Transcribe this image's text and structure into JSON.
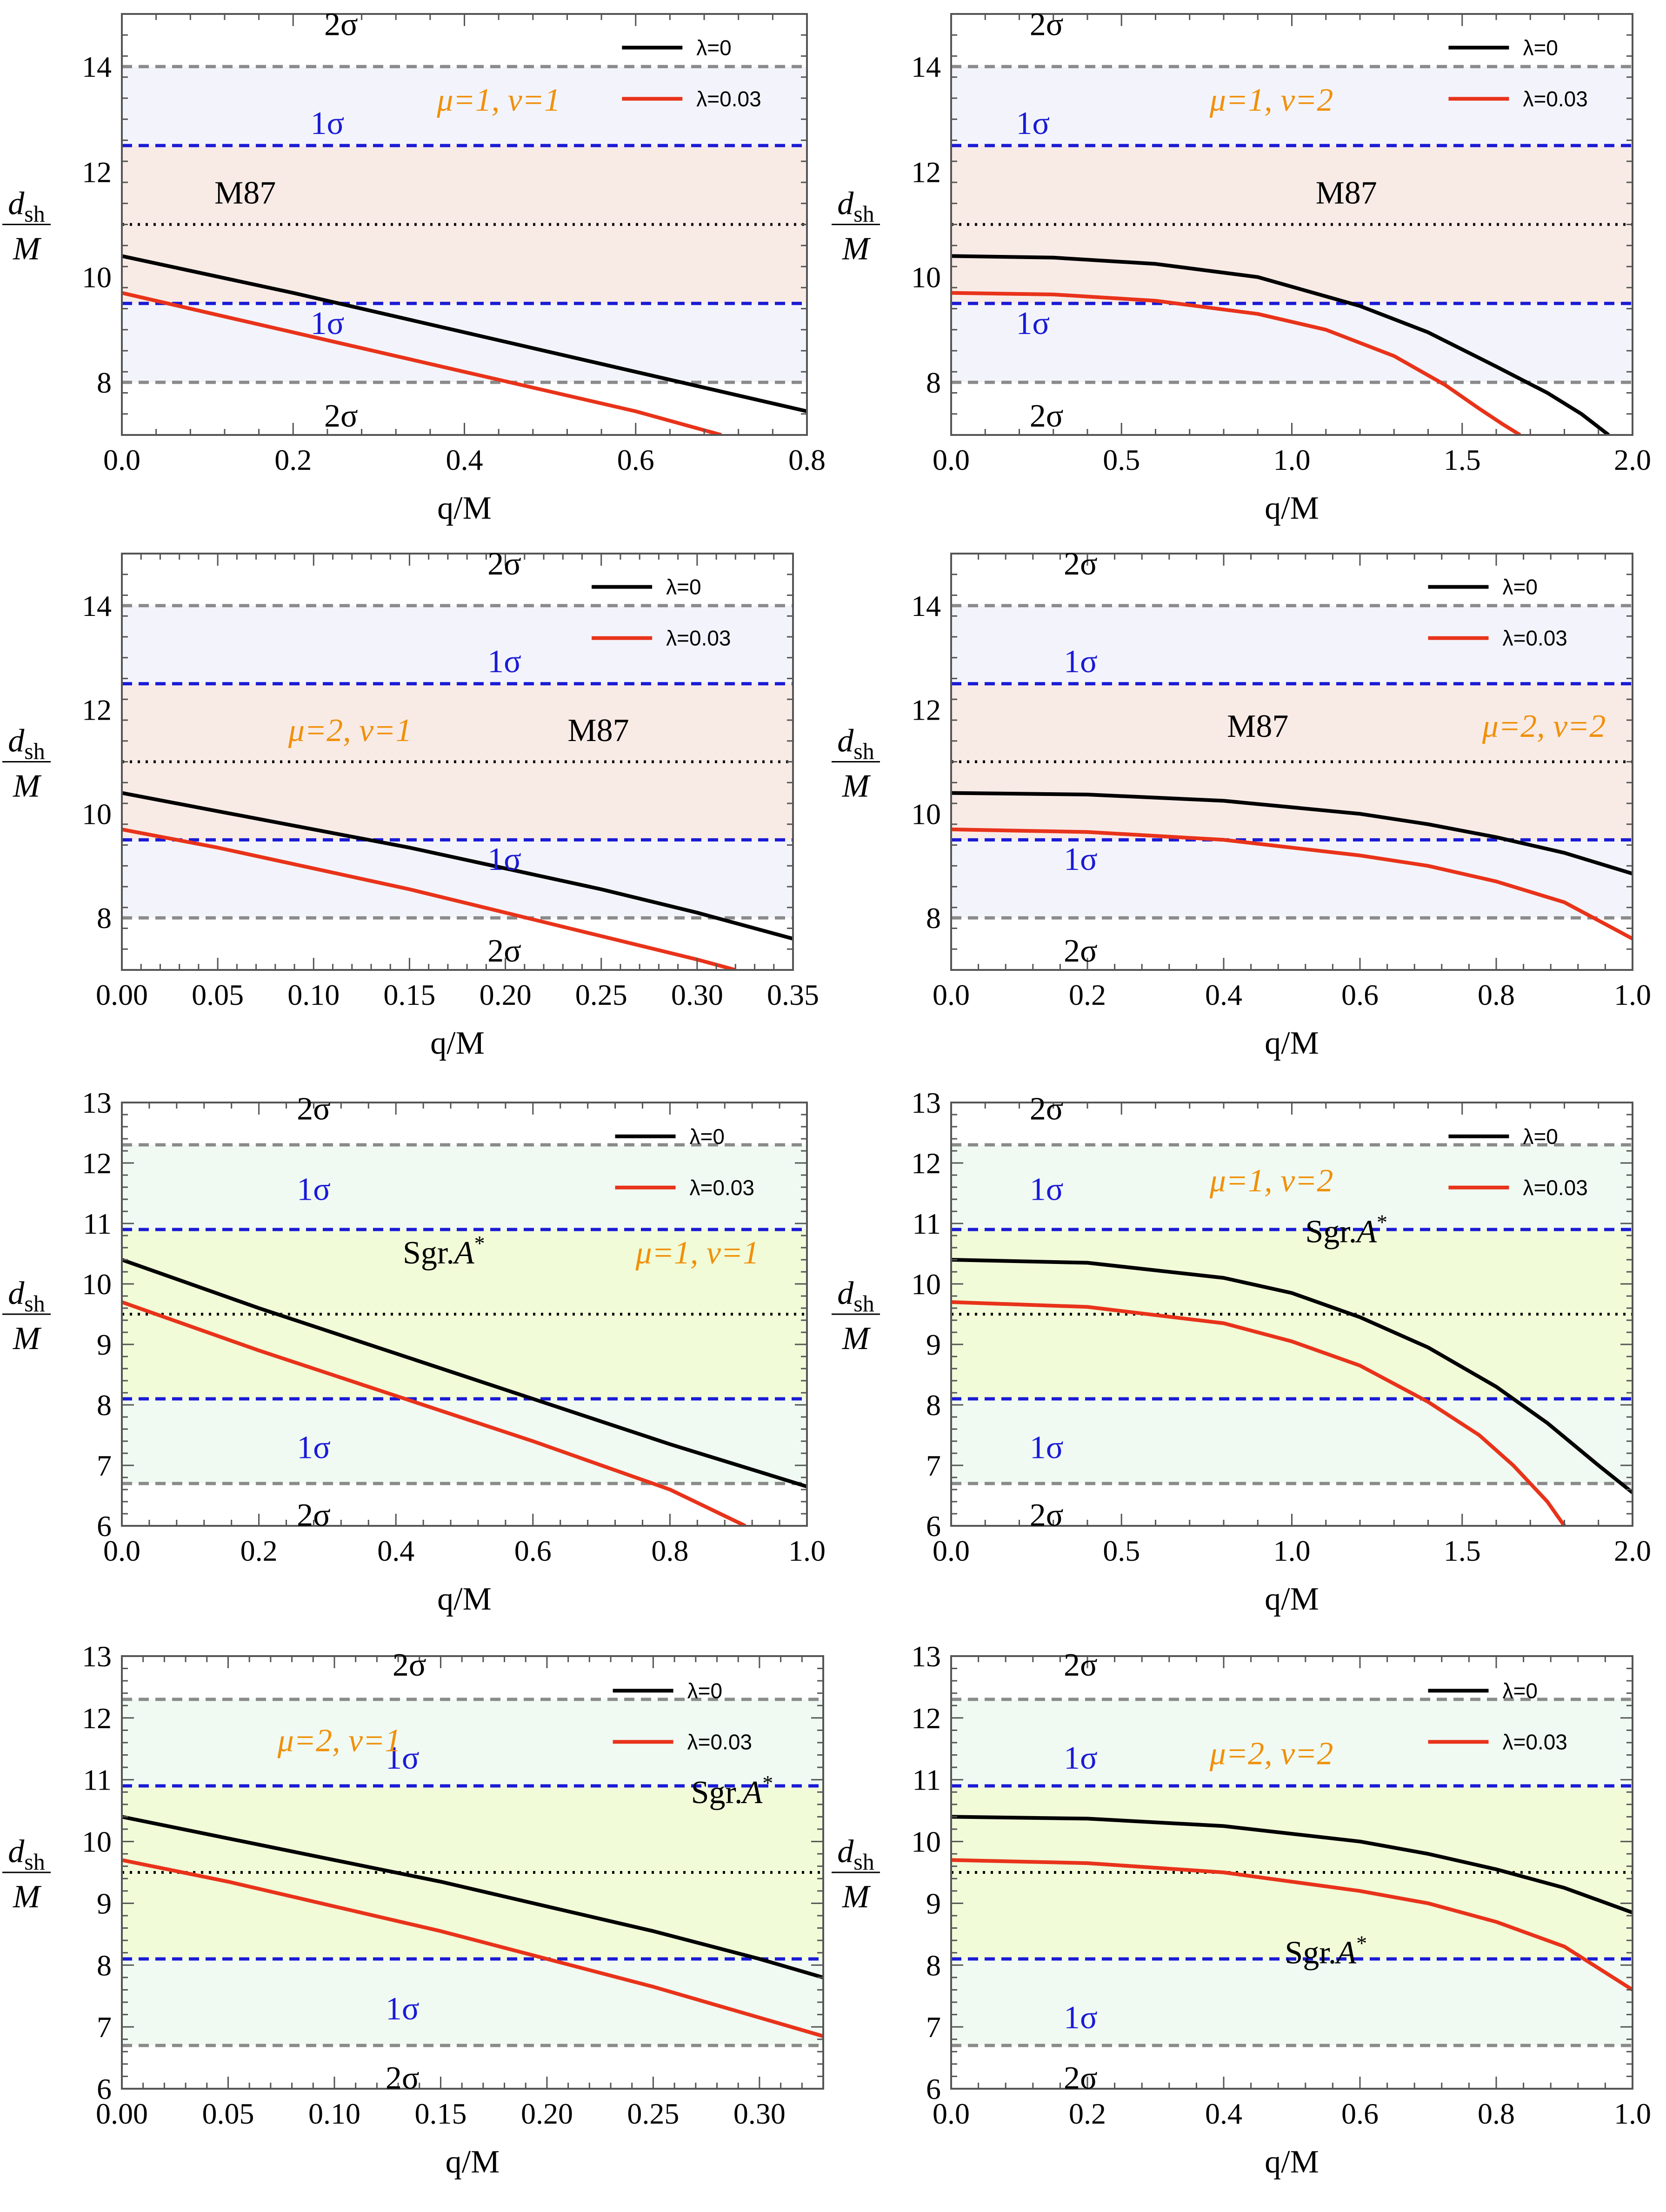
{
  "colors": {
    "lambda0": "#000000",
    "lambda003": "#e8331a",
    "one_sigma_line": "#1a1ad6",
    "two_sigma_line": "#8a8a8a",
    "mean_line": "#000000",
    "m87_band1": "#f8ebe6",
    "m87_band2": "#f3f4fb",
    "sgr_band1": "#f1fbd8",
    "sgr_band2": "#f0faf3",
    "param_label": "#f0900a",
    "one_sigma_label": "#1a1ad6"
  },
  "charts": [
    {
      "type": "line",
      "xlabel": "q/M",
      "ylabel_num": "d",
      "ylabel_sub": "sh",
      "ylabel_den": "M",
      "xlim": [
        0,
        0.8
      ],
      "ylim": [
        7,
        15
      ],
      "xticks": [
        0.0,
        0.2,
        0.4,
        0.6,
        0.8
      ],
      "xtick_labels": [
        "0.0",
        "0.2",
        "0.4",
        "0.6",
        "0.8"
      ],
      "yticks": [
        8,
        10,
        12,
        14
      ],
      "ytick_labels": [
        "8",
        "10",
        "12",
        "14"
      ],
      "band": "m87",
      "ref_lines": {
        "mean": 11,
        "one_sigma": [
          9.5,
          12.5
        ],
        "two_sigma": [
          8,
          14
        ]
      },
      "source_label": "M87",
      "param_label": "μ=1, ν=1",
      "sigma_labels": {
        "two_top": "2σ",
        "one_top": "1σ",
        "one_bottom": "1σ",
        "two_bottom": "2σ"
      },
      "series": [
        {
          "name": "λ=0",
          "x": [
            0,
            0.2,
            0.4,
            0.6,
            0.8
          ],
          "y": [
            10.4,
            9.7,
            8.95,
            8.2,
            7.45
          ]
        },
        {
          "name": "λ=0.03",
          "x": [
            0,
            0.2,
            0.4,
            0.6,
            0.7
          ],
          "y": [
            9.7,
            8.95,
            8.2,
            7.45,
            7.0
          ]
        }
      ]
    },
    {
      "type": "line",
      "xlabel": "q/M",
      "ylabel_num": "d",
      "ylabel_sub": "sh",
      "ylabel_den": "M",
      "xlim": [
        0,
        2.0
      ],
      "ylim": [
        7,
        15
      ],
      "xticks": [
        0.0,
        0.5,
        1.0,
        1.5,
        2.0
      ],
      "xtick_labels": [
        "0.0",
        "0.5",
        "1.0",
        "1.5",
        "2.0"
      ],
      "yticks": [
        8,
        10,
        12,
        14
      ],
      "ytick_labels": [
        "8",
        "10",
        "12",
        "14"
      ],
      "band": "m87",
      "ref_lines": {
        "mean": 11,
        "one_sigma": [
          9.5,
          12.5
        ],
        "two_sigma": [
          8,
          14
        ]
      },
      "source_label": "M87",
      "param_label": "μ=1, ν=2",
      "sigma_labels": {
        "two_top": "2σ",
        "one_top": "1σ",
        "one_bottom": "1σ",
        "two_bottom": "2σ"
      },
      "series": [
        {
          "name": "λ=0",
          "x": [
            0,
            0.3,
            0.6,
            0.9,
            1.2,
            1.4,
            1.6,
            1.75,
            1.85,
            1.93
          ],
          "y": [
            10.4,
            10.37,
            10.25,
            10.0,
            9.45,
            8.95,
            8.3,
            7.8,
            7.4,
            7.0
          ]
        },
        {
          "name": "λ=0.03",
          "x": [
            0,
            0.3,
            0.6,
            0.9,
            1.1,
            1.3,
            1.45,
            1.55,
            1.62,
            1.67
          ],
          "y": [
            9.7,
            9.67,
            9.55,
            9.3,
            9.0,
            8.5,
            7.95,
            7.5,
            7.2,
            7.0
          ]
        }
      ]
    },
    {
      "type": "line",
      "xlabel": "q/M",
      "ylabel_num": "d",
      "ylabel_sub": "sh",
      "ylabel_den": "M",
      "xlim": [
        0,
        0.35
      ],
      "ylim": [
        7,
        15
      ],
      "xticks": [
        0.0,
        0.05,
        0.1,
        0.15,
        0.2,
        0.25,
        0.3,
        0.35
      ],
      "xtick_labels": [
        "0.00",
        "0.05",
        "0.10",
        "0.15",
        "0.20",
        "0.25",
        "0.30",
        "0.35"
      ],
      "yticks": [
        8,
        10,
        12,
        14
      ],
      "ytick_labels": [
        "8",
        "10",
        "12",
        "14"
      ],
      "band": "m87",
      "ref_lines": {
        "mean": 11,
        "one_sigma": [
          9.5,
          12.5
        ],
        "two_sigma": [
          8,
          14
        ]
      },
      "source_label": "M87",
      "param_label": "μ=2, ν=1",
      "sigma_labels": {
        "two_top": "2σ",
        "one_top": "1σ",
        "one_bottom": "1σ",
        "two_bottom": "2σ"
      },
      "series": [
        {
          "name": "λ=0",
          "x": [
            0,
            0.05,
            0.1,
            0.15,
            0.2,
            0.25,
            0.3,
            0.35
          ],
          "y": [
            10.4,
            10.05,
            9.7,
            9.35,
            8.95,
            8.55,
            8.1,
            7.6
          ]
        },
        {
          "name": "λ=0.03",
          "x": [
            0,
            0.05,
            0.1,
            0.15,
            0.2,
            0.25,
            0.3,
            0.32
          ],
          "y": [
            9.7,
            9.35,
            8.95,
            8.55,
            8.1,
            7.65,
            7.2,
            7.0
          ]
        }
      ]
    },
    {
      "type": "line",
      "xlabel": "q/M",
      "ylabel_num": "d",
      "ylabel_sub": "sh",
      "ylabel_den": "M",
      "xlim": [
        0,
        1.0
      ],
      "ylim": [
        7,
        15
      ],
      "xticks": [
        0.0,
        0.2,
        0.4,
        0.6,
        0.8,
        1.0
      ],
      "xtick_labels": [
        "0.0",
        "0.2",
        "0.4",
        "0.6",
        "0.8",
        "1.0"
      ],
      "yticks": [
        8,
        10,
        12,
        14
      ],
      "ytick_labels": [
        "8",
        "10",
        "12",
        "14"
      ],
      "band": "m87",
      "ref_lines": {
        "mean": 11,
        "one_sigma": [
          9.5,
          12.5
        ],
        "two_sigma": [
          8,
          14
        ]
      },
      "source_label": "M87",
      "param_label": "μ=2, ν=2",
      "sigma_labels": {
        "two_top": "2σ",
        "one_top": "1σ",
        "one_bottom": "1σ",
        "two_bottom": "2σ"
      },
      "series": [
        {
          "name": "λ=0",
          "x": [
            0,
            0.2,
            0.4,
            0.6,
            0.7,
            0.8,
            0.9,
            0.95,
            1.0
          ],
          "y": [
            10.4,
            10.37,
            10.25,
            10.0,
            9.8,
            9.55,
            9.25,
            9.05,
            8.85
          ]
        },
        {
          "name": "λ=0.03",
          "x": [
            0,
            0.2,
            0.4,
            0.6,
            0.7,
            0.8,
            0.9,
            0.95,
            1.0
          ],
          "y": [
            9.7,
            9.65,
            9.5,
            9.2,
            9.0,
            8.7,
            8.3,
            7.95,
            7.6
          ]
        }
      ]
    },
    {
      "type": "line",
      "xlabel": "q/M",
      "ylabel_num": "d",
      "ylabel_sub": "sh",
      "ylabel_den": "M",
      "xlim": [
        0,
        1.0
      ],
      "ylim": [
        6,
        13
      ],
      "xticks": [
        0.0,
        0.2,
        0.4,
        0.6,
        0.8,
        1.0
      ],
      "xtick_labels": [
        "0.0",
        "0.2",
        "0.4",
        "0.6",
        "0.8",
        "1.0"
      ],
      "yticks": [
        6,
        7,
        8,
        9,
        10,
        11,
        12,
        13
      ],
      "ytick_labels": [
        "6",
        "7",
        "8",
        "9",
        "10",
        "11",
        "12",
        "13"
      ],
      "band": "sgr",
      "ref_lines": {
        "mean": 9.5,
        "one_sigma": [
          8.1,
          10.9
        ],
        "two_sigma": [
          6.7,
          12.3
        ]
      },
      "source_label": "Sgr.",
      "source_label_italic": "A",
      "source_label_sup": "*",
      "param_label": "μ=1, ν=1",
      "sigma_labels": {
        "two_top": "2σ",
        "one_top": "1σ",
        "one_bottom": "1σ",
        "two_bottom": "2σ"
      },
      "series": [
        {
          "name": "λ=0",
          "x": [
            0,
            0.2,
            0.4,
            0.6,
            0.8,
            1.0
          ],
          "y": [
            10.4,
            9.6,
            8.85,
            8.1,
            7.35,
            6.65
          ]
        },
        {
          "name": "λ=0.03",
          "x": [
            0,
            0.2,
            0.4,
            0.6,
            0.8,
            0.91
          ],
          "y": [
            9.7,
            8.9,
            8.15,
            7.4,
            6.6,
            6.0
          ]
        }
      ]
    },
    {
      "type": "line",
      "xlabel": "q/M",
      "ylabel_num": "d",
      "ylabel_sub": "sh",
      "ylabel_den": "M",
      "xlim": [
        0,
        2.0
      ],
      "ylim": [
        6,
        13
      ],
      "xticks": [
        0.0,
        0.5,
        1.0,
        1.5,
        2.0
      ],
      "xtick_labels": [
        "0.0",
        "0.5",
        "1.0",
        "1.5",
        "2.0"
      ],
      "yticks": [
        6,
        7,
        8,
        9,
        10,
        11,
        12,
        13
      ],
      "ytick_labels": [
        "6",
        "7",
        "8",
        "9",
        "10",
        "11",
        "12",
        "13"
      ],
      "band": "sgr",
      "ref_lines": {
        "mean": 9.5,
        "one_sigma": [
          8.1,
          10.9
        ],
        "two_sigma": [
          6.7,
          12.3
        ]
      },
      "source_label": "Sgr.",
      "source_label_italic": "A",
      "source_label_sup": "*",
      "param_label": "μ=1, ν=2",
      "sigma_labels": {
        "two_top": "2σ",
        "one_top": "1σ",
        "one_bottom": "1σ",
        "two_bottom": "2σ"
      },
      "series": [
        {
          "name": "λ=0",
          "x": [
            0,
            0.4,
            0.8,
            1.0,
            1.2,
            1.4,
            1.6,
            1.75,
            1.9,
            2.0
          ],
          "y": [
            10.4,
            10.35,
            10.1,
            9.85,
            9.45,
            8.95,
            8.3,
            7.7,
            7.0,
            6.55
          ]
        },
        {
          "name": "λ=0.03",
          "x": [
            0,
            0.4,
            0.8,
            1.0,
            1.2,
            1.4,
            1.55,
            1.65,
            1.75,
            1.8
          ],
          "y": [
            9.7,
            9.62,
            9.35,
            9.05,
            8.65,
            8.05,
            7.5,
            7.0,
            6.4,
            6.0
          ]
        }
      ]
    },
    {
      "type": "line",
      "xlabel": "q/M",
      "ylabel_num": "d",
      "ylabel_sub": "sh",
      "ylabel_den": "M",
      "xlim": [
        0,
        0.33
      ],
      "ylim": [
        6,
        13
      ],
      "xticks": [
        0.0,
        0.05,
        0.1,
        0.15,
        0.2,
        0.25,
        0.3
      ],
      "xtick_labels": [
        "0.00",
        "0.05",
        "0.10",
        "0.15",
        "0.20",
        "0.25",
        "0.30"
      ],
      "yticks": [
        6,
        7,
        8,
        9,
        10,
        11,
        12,
        13
      ],
      "ytick_labels": [
        "6",
        "7",
        "8",
        "9",
        "10",
        "11",
        "12",
        "13"
      ],
      "band": "sgr",
      "ref_lines": {
        "mean": 9.5,
        "one_sigma": [
          8.1,
          10.9
        ],
        "two_sigma": [
          6.7,
          12.3
        ]
      },
      "source_label": "Sgr.",
      "source_label_italic": "A",
      "source_label_sup": "*",
      "param_label": "μ=2, ν=1",
      "sigma_labels": {
        "two_top": "2σ",
        "one_top": "1σ",
        "one_bottom": "1σ",
        "two_bottom": "2σ"
      },
      "series": [
        {
          "name": "λ=0",
          "x": [
            0,
            0.05,
            0.1,
            0.15,
            0.2,
            0.25,
            0.3,
            0.33
          ],
          "y": [
            10.4,
            10.05,
            9.7,
            9.35,
            8.95,
            8.55,
            8.1,
            7.8
          ]
        },
        {
          "name": "λ=0.03",
          "x": [
            0,
            0.05,
            0.1,
            0.15,
            0.2,
            0.25,
            0.3,
            0.33
          ],
          "y": [
            9.7,
            9.35,
            8.95,
            8.55,
            8.1,
            7.65,
            7.15,
            6.85
          ]
        }
      ]
    },
    {
      "type": "line",
      "xlabel": "q/M",
      "ylabel_num": "d",
      "ylabel_sub": "sh",
      "ylabel_den": "M",
      "xlim": [
        0,
        1.0
      ],
      "ylim": [
        6,
        13
      ],
      "xticks": [
        0.0,
        0.2,
        0.4,
        0.6,
        0.8,
        1.0
      ],
      "xtick_labels": [
        "0.0",
        "0.2",
        "0.4",
        "0.6",
        "0.8",
        "1.0"
      ],
      "yticks": [
        6,
        7,
        8,
        9,
        10,
        11,
        12,
        13
      ],
      "ytick_labels": [
        "6",
        "7",
        "8",
        "9",
        "10",
        "11",
        "12",
        "13"
      ],
      "band": "sgr",
      "ref_lines": {
        "mean": 9.5,
        "one_sigma": [
          8.1,
          10.9
        ],
        "two_sigma": [
          6.7,
          12.3
        ]
      },
      "source_label": "Sgr.",
      "source_label_italic": "A",
      "source_label_sup": "*",
      "param_label": "μ=2, ν=2",
      "sigma_labels": {
        "two_top": "2σ",
        "one_top": "1σ",
        "one_bottom": "1σ",
        "two_bottom": "2σ"
      },
      "series": [
        {
          "name": "λ=0",
          "x": [
            0,
            0.2,
            0.4,
            0.6,
            0.7,
            0.8,
            0.9,
            0.95,
            1.0
          ],
          "y": [
            10.4,
            10.37,
            10.25,
            10.0,
            9.8,
            9.55,
            9.25,
            9.05,
            8.85
          ]
        },
        {
          "name": "λ=0.03",
          "x": [
            0,
            0.2,
            0.4,
            0.6,
            0.7,
            0.8,
            0.9,
            0.95,
            1.0
          ],
          "y": [
            9.7,
            9.65,
            9.5,
            9.2,
            9.0,
            8.7,
            8.3,
            7.95,
            7.6
          ]
        }
      ]
    }
  ]
}
